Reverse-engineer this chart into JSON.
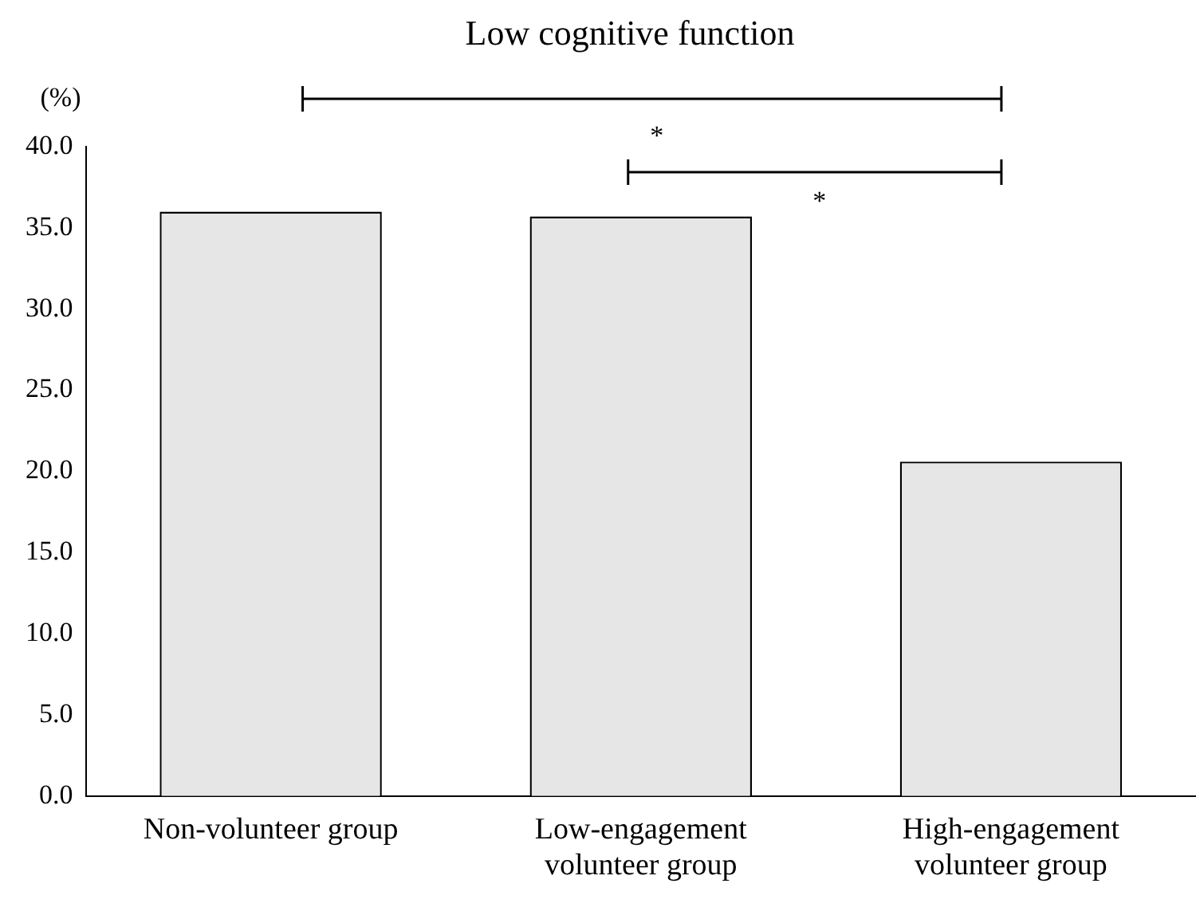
{
  "chart_data": {
    "type": "bar",
    "title": "Low cognitive function",
    "ylabel": "(%)",
    "categories": [
      "Non-volunteer group",
      "Low-engagement volunteer group",
      "High-engagement volunteer group"
    ],
    "values": [
      36.0,
      35.7,
      20.6
    ],
    "color": "#e6e6e6",
    "ylim": [
      0,
      40
    ],
    "yticks": [
      {
        "value": 0,
        "label": "0.0"
      },
      {
        "value": 5,
        "label": "5.0"
      },
      {
        "value": 10,
        "label": "10.0"
      },
      {
        "value": 15,
        "label": "15.0"
      },
      {
        "value": 20,
        "label": "20.0"
      },
      {
        "value": 25,
        "label": "25.0"
      },
      {
        "value": 30,
        "label": "30.0"
      },
      {
        "value": 35,
        "label": "35.0"
      },
      {
        "value": 40,
        "label": "40.0"
      }
    ],
    "grid": false,
    "legend": false,
    "annotations": [
      "*",
      "*"
    ]
  }
}
